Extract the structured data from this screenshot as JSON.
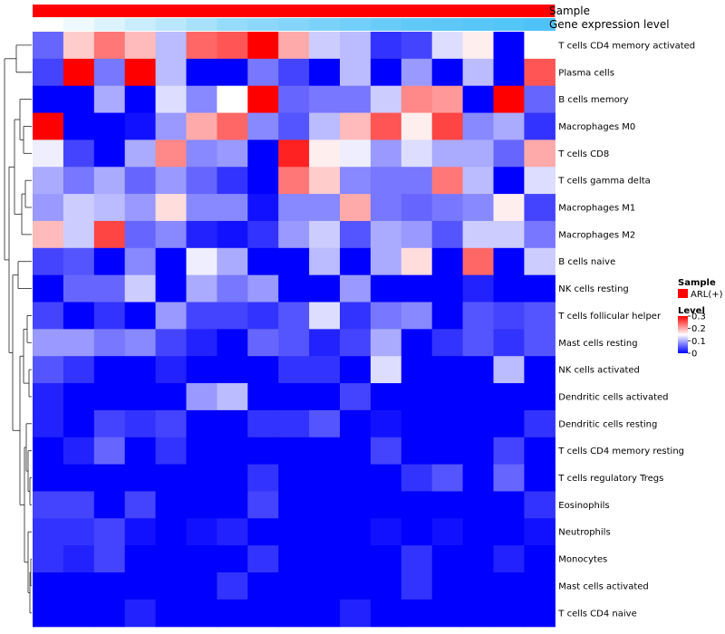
{
  "chart_data": {
    "type": "heatmap",
    "annotations": {
      "sample_label": "Sample",
      "expression_label": "Gene expression level",
      "sample_color": "#ff0000",
      "expression_low_color": "#ffffff",
      "expression_high_color": "#4fc3f7"
    },
    "color_scale": {
      "low": "#0000ff",
      "mid": "#ffffff",
      "high": "#ff0000",
      "min": 0,
      "mid_value": 0.15,
      "max": 0.3
    },
    "legend": {
      "sample_title": "Sample",
      "sample_entry": "ARL(+)",
      "level_title": "Level",
      "ticks": [
        0.3,
        0.2,
        0.1,
        0
      ],
      "tick_labels": [
        "0.3",
        "0.2",
        "0.1",
        "0"
      ]
    },
    "rows": [
      "T cells CD4 memory activated",
      "Plasma cells",
      "B cells memory",
      "Macrophages M0",
      "T cells CD8",
      "T cells gamma delta",
      "Macrophages M1",
      "Macrophages M2",
      "B cells naive",
      "NK cells resting",
      "T cells follicular helper",
      "Mast cells resting",
      "NK cells activated",
      "Dendritic cells activated",
      "Dendritic cells resting",
      "T cells CD4 memory resting",
      "T cells regulatory  Tregs",
      "Eosinophils",
      "Neutrophils",
      "Monocytes",
      "Mast cells activated",
      "T cells CD4 naive"
    ],
    "values": [
      [
        0.06,
        0.18,
        0.23,
        0.19,
        0.11,
        0.24,
        0.25,
        0.3,
        0.2,
        0.12,
        0.11,
        0.03,
        0.04,
        0.13,
        0.16,
        0.0,
        0.15
      ],
      [
        0.04,
        0.3,
        0.07,
        0.3,
        0.11,
        0.0,
        0.0,
        0.07,
        0.04,
        0.0,
        0.11,
        0.0,
        0.09,
        0.0,
        0.11,
        0.0,
        0.25
      ],
      [
        0.0,
        0.0,
        0.1,
        0.0,
        0.13,
        0.08,
        0.15,
        0.3,
        0.06,
        0.07,
        0.07,
        0.12,
        0.22,
        0.21,
        0.0,
        0.3,
        0.06
      ],
      [
        0.3,
        0.0,
        0.0,
        0.01,
        0.09,
        0.2,
        0.24,
        0.08,
        0.05,
        0.11,
        0.19,
        0.25,
        0.16,
        0.26,
        0.08,
        0.1,
        0.03
      ],
      [
        0.14,
        0.04,
        0.0,
        0.1,
        0.22,
        0.08,
        0.09,
        0.0,
        0.28,
        0.16,
        0.14,
        0.09,
        0.13,
        0.1,
        0.1,
        0.06,
        0.2
      ],
      [
        0.1,
        0.07,
        0.1,
        0.06,
        0.09,
        0.06,
        0.03,
        0.0,
        0.23,
        0.18,
        0.08,
        0.07,
        0.07,
        0.23,
        0.11,
        0.0,
        0.13
      ],
      [
        0.09,
        0.12,
        0.11,
        0.09,
        0.17,
        0.08,
        0.08,
        0.01,
        0.08,
        0.08,
        0.2,
        0.07,
        0.06,
        0.07,
        0.08,
        0.16,
        0.04
      ],
      [
        0.19,
        0.12,
        0.26,
        0.06,
        0.08,
        0.02,
        0.01,
        0.03,
        0.09,
        0.12,
        0.05,
        0.1,
        0.09,
        0.05,
        0.12,
        0.12,
        0.07
      ],
      [
        0.04,
        0.05,
        0.0,
        0.08,
        0.0,
        0.14,
        0.1,
        0.0,
        0.0,
        0.11,
        0.0,
        0.1,
        0.17,
        0.0,
        0.24,
        0.0,
        0.12
      ],
      [
        0.0,
        0.06,
        0.06,
        0.12,
        0.0,
        0.1,
        0.07,
        0.09,
        0.0,
        0.0,
        0.09,
        0.0,
        0.0,
        0.0,
        0.02,
        0.0,
        0.0
      ],
      [
        0.04,
        0.0,
        0.03,
        0.0,
        0.09,
        0.04,
        0.04,
        0.03,
        0.05,
        0.13,
        0.03,
        0.07,
        0.08,
        0.0,
        0.05,
        0.04,
        0.05
      ],
      [
        0.09,
        0.09,
        0.07,
        0.08,
        0.04,
        0.02,
        0.0,
        0.06,
        0.05,
        0.02,
        0.04,
        0.1,
        0.0,
        0.03,
        0.05,
        0.03,
        0.05
      ],
      [
        0.05,
        0.03,
        0.0,
        0.0,
        0.02,
        0.0,
        0.0,
        0.0,
        0.03,
        0.03,
        0.0,
        0.13,
        0.0,
        0.0,
        0.0,
        0.11,
        0.0
      ],
      [
        0.02,
        0.0,
        0.0,
        0.0,
        0.0,
        0.09,
        0.11,
        0.0,
        0.0,
        0.0,
        0.04,
        0.0,
        0.0,
        0.0,
        0.0,
        0.0,
        0.0
      ],
      [
        0.02,
        0.0,
        0.04,
        0.03,
        0.04,
        0.0,
        0.0,
        0.03,
        0.03,
        0.05,
        0.0,
        0.01,
        0.0,
        0.0,
        0.0,
        0.0,
        0.03
      ],
      [
        0.0,
        0.02,
        0.06,
        0.0,
        0.03,
        0.0,
        0.0,
        0.0,
        0.0,
        0.0,
        0.0,
        0.04,
        0.0,
        0.0,
        0.0,
        0.04,
        0.0
      ],
      [
        0.0,
        0.0,
        0.0,
        0.0,
        0.0,
        0.0,
        0.0,
        0.03,
        0.0,
        0.0,
        0.0,
        0.0,
        0.03,
        0.05,
        0.0,
        0.06,
        0.0
      ],
      [
        0.04,
        0.04,
        0.0,
        0.04,
        0.0,
        0.0,
        0.0,
        0.04,
        0.0,
        0.0,
        0.0,
        0.0,
        0.0,
        0.0,
        0.0,
        0.0,
        0.03
      ],
      [
        0.03,
        0.03,
        0.04,
        0.01,
        0.0,
        0.01,
        0.02,
        0.0,
        0.0,
        0.0,
        0.0,
        0.01,
        0.0,
        0.01,
        0.0,
        0.0,
        0.01
      ],
      [
        0.03,
        0.02,
        0.04,
        0.0,
        0.0,
        0.0,
        0.0,
        0.03,
        0.0,
        0.0,
        0.0,
        0.0,
        0.03,
        0.0,
        0.0,
        0.02,
        0.0
      ],
      [
        0.0,
        0.0,
        0.0,
        0.0,
        0.0,
        0.0,
        0.03,
        0.0,
        0.0,
        0.0,
        0.0,
        0.0,
        0.03,
        0.0,
        0.0,
        0.0,
        0.0
      ],
      [
        0.0,
        0.0,
        0.0,
        0.02,
        0.0,
        0.0,
        0.0,
        0.0,
        0.0,
        0.0,
        0.02,
        0.0,
        0.0,
        0.0,
        0.0,
        0.0,
        0.0
      ]
    ],
    "expression_levels": [
      0.0,
      0.1,
      0.2,
      0.3,
      0.4,
      0.5,
      0.6,
      0.65,
      0.7,
      0.75,
      0.8,
      0.85,
      0.9,
      0.92,
      0.95,
      0.97,
      1.0
    ]
  }
}
